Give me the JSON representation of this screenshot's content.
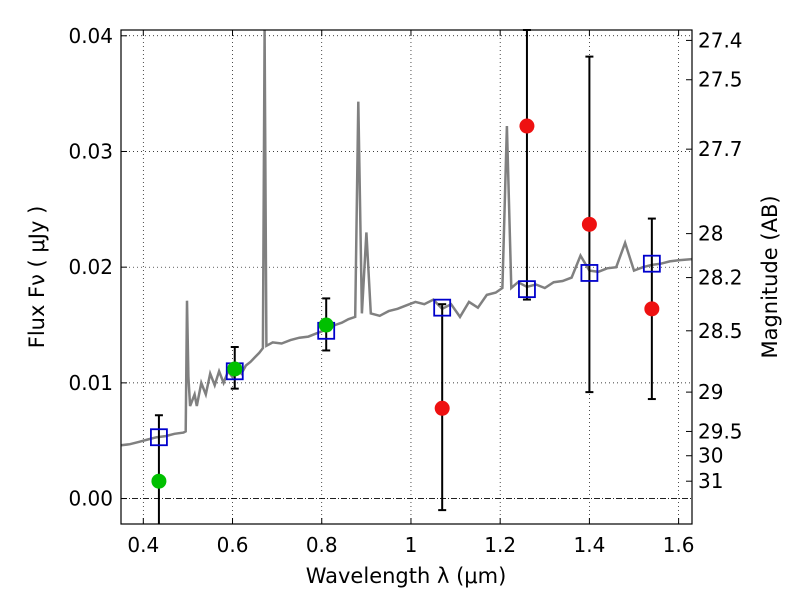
{
  "chart_data": {
    "type": "scatter",
    "xlabel": "Wavelength  λ (μm)",
    "ylabel": "Flux  Fν  ( μJy )",
    "y2label": "Magnitude (AB)",
    "xlim": [
      0.35,
      1.63
    ],
    "ylim": [
      -0.0022,
      0.0405
    ],
    "grid": true,
    "x_ticks": [
      {
        "value": 0.4,
        "label": "0.4"
      },
      {
        "value": 0.6,
        "label": "0.6"
      },
      {
        "value": 0.8,
        "label": "0.8"
      },
      {
        "value": 1.0,
        "label": "1"
      },
      {
        "value": 1.2,
        "label": "1.2"
      },
      {
        "value": 1.4,
        "label": "1.4"
      },
      {
        "value": 1.6,
        "label": "1.6"
      }
    ],
    "y_ticks": [
      {
        "value": 0.0,
        "label": "0.00"
      },
      {
        "value": 0.01,
        "label": "0.01"
      },
      {
        "value": 0.02,
        "label": "0.02"
      },
      {
        "value": 0.03,
        "label": "0.03"
      },
      {
        "value": 0.04,
        "label": "0.04"
      }
    ],
    "mag_ticks": [
      {
        "flux": 0.0396,
        "label": "27.4"
      },
      {
        "flux": 0.0362,
        "label": "27.5"
      },
      {
        "flux": 0.0302,
        "label": "27.7"
      },
      {
        "flux": 0.0229,
        "label": "28"
      },
      {
        "flux": 0.0191,
        "label": "28.2"
      },
      {
        "flux": 0.0145,
        "label": "28.5"
      },
      {
        "flux": 0.0092,
        "label": "29"
      },
      {
        "flux": 0.0058,
        "label": "29.5"
      },
      {
        "flux": 0.0037,
        "label": "30"
      },
      {
        "flux": 0.0015,
        "label": "31"
      }
    ],
    "colors": {
      "spectrum": "#808080",
      "model": "#0000cc",
      "green": "#00c000",
      "red": "#ee1111",
      "error": "#000000"
    },
    "spectrum": [
      [
        0.35,
        0.0046
      ],
      [
        0.37,
        0.0047
      ],
      [
        0.39,
        0.0049
      ],
      [
        0.41,
        0.0051
      ],
      [
        0.43,
        0.0053
      ],
      [
        0.45,
        0.0054
      ],
      [
        0.47,
        0.0056
      ],
      [
        0.49,
        0.0057
      ],
      [
        0.495,
        0.0058
      ],
      [
        0.498,
        0.0171
      ],
      [
        0.501,
        0.0105
      ],
      [
        0.505,
        0.008
      ],
      [
        0.515,
        0.009
      ],
      [
        0.52,
        0.008
      ],
      [
        0.53,
        0.01
      ],
      [
        0.54,
        0.009
      ],
      [
        0.55,
        0.0108
      ],
      [
        0.56,
        0.0098
      ],
      [
        0.57,
        0.011
      ],
      [
        0.58,
        0.01
      ],
      [
        0.59,
        0.011
      ],
      [
        0.6,
        0.0105
      ],
      [
        0.61,
        0.0112
      ],
      [
        0.62,
        0.0108
      ],
      [
        0.63,
        0.0115
      ],
      [
        0.64,
        0.0118
      ],
      [
        0.65,
        0.0122
      ],
      [
        0.66,
        0.0126
      ],
      [
        0.668,
        0.013
      ],
      [
        0.672,
        0.0405
      ],
      [
        0.676,
        0.0132
      ],
      [
        0.69,
        0.0135
      ],
      [
        0.71,
        0.0134
      ],
      [
        0.73,
        0.0137
      ],
      [
        0.75,
        0.0139
      ],
      [
        0.77,
        0.014
      ],
      [
        0.79,
        0.0143
      ],
      [
        0.81,
        0.0146
      ],
      [
        0.83,
        0.015
      ],
      [
        0.845,
        0.0152
      ],
      [
        0.86,
        0.0155
      ],
      [
        0.875,
        0.0157
      ],
      [
        0.882,
        0.0343
      ],
      [
        0.89,
        0.016
      ],
      [
        0.9,
        0.023
      ],
      [
        0.91,
        0.016
      ],
      [
        0.93,
        0.0158
      ],
      [
        0.95,
        0.0162
      ],
      [
        0.97,
        0.0164
      ],
      [
        0.99,
        0.0167
      ],
      [
        1.01,
        0.017
      ],
      [
        1.03,
        0.0168
      ],
      [
        1.05,
        0.0172
      ],
      [
        1.07,
        0.0164
      ],
      [
        1.09,
        0.0168
      ],
      [
        1.11,
        0.0157
      ],
      [
        1.13,
        0.017
      ],
      [
        1.15,
        0.0165
      ],
      [
        1.17,
        0.0176
      ],
      [
        1.19,
        0.0178
      ],
      [
        1.205,
        0.0182
      ],
      [
        1.215,
        0.0322
      ],
      [
        1.225,
        0.0182
      ],
      [
        1.24,
        0.0187
      ],
      [
        1.26,
        0.0183
      ],
      [
        1.28,
        0.0185
      ],
      [
        1.3,
        0.0182
      ],
      [
        1.32,
        0.0187
      ],
      [
        1.34,
        0.0188
      ],
      [
        1.36,
        0.0191
      ],
      [
        1.38,
        0.021
      ],
      [
        1.4,
        0.0197
      ],
      [
        1.42,
        0.0196
      ],
      [
        1.44,
        0.0199
      ],
      [
        1.46,
        0.02
      ],
      [
        1.48,
        0.0221
      ],
      [
        1.5,
        0.0197
      ],
      [
        1.52,
        0.02
      ],
      [
        1.54,
        0.0202
      ],
      [
        1.56,
        0.0203
      ],
      [
        1.58,
        0.0205
      ],
      [
        1.6,
        0.0206
      ],
      [
        1.63,
        0.0207
      ]
    ],
    "model_points": [
      {
        "x": 0.435,
        "y": 0.0053
      },
      {
        "x": 0.605,
        "y": 0.011
      },
      {
        "x": 0.81,
        "y": 0.0145
      },
      {
        "x": 1.07,
        "y": 0.0165
      },
      {
        "x": 1.26,
        "y": 0.0181
      },
      {
        "x": 1.4,
        "y": 0.0195
      },
      {
        "x": 1.54,
        "y": 0.0203
      }
    ],
    "measurements": [
      {
        "x": 0.435,
        "y": 0.0015,
        "err_lo": -0.0025,
        "err_hi": 0.0072,
        "color": "green"
      },
      {
        "x": 0.605,
        "y": 0.0112,
        "err_lo": 0.0095,
        "err_hi": 0.0131,
        "color": "green"
      },
      {
        "x": 0.81,
        "y": 0.015,
        "err_lo": 0.0128,
        "err_hi": 0.0173,
        "color": "green"
      },
      {
        "x": 1.07,
        "y": 0.0078,
        "err_lo": -0.001,
        "err_hi": 0.0168,
        "color": "red"
      },
      {
        "x": 1.26,
        "y": 0.0322,
        "err_lo": 0.0172,
        "err_hi": 0.0405,
        "color": "red"
      },
      {
        "x": 1.4,
        "y": 0.0237,
        "err_lo": 0.0092,
        "err_hi": 0.0382,
        "color": "red"
      },
      {
        "x": 1.54,
        "y": 0.0164,
        "err_lo": 0.0086,
        "err_hi": 0.0242,
        "color": "red"
      }
    ]
  }
}
